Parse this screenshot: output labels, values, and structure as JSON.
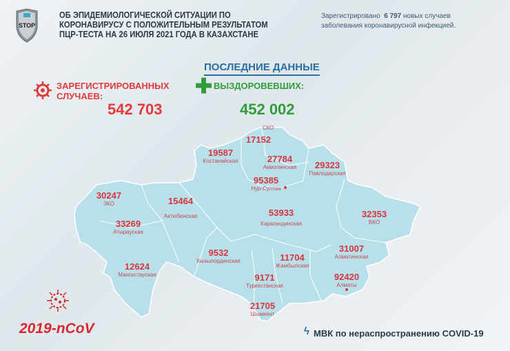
{
  "logo": {
    "text": "STOP",
    "colors": {
      "shield": "#8a9399",
      "accent": "#3aa6c9"
    }
  },
  "header": {
    "title_lines": [
      "ОБ ЭПИДЕМИОЛОГИЧЕСКОЙ СИТУАЦИИ ПО",
      "КОРОНАВИРУСУ С ПОЛОЖИТЕЛЬНЫМ РЕЗУЛЬТАТОМ",
      "ПЦР-ТЕСТА НА 26 ИЮЛЯ 2021 ГОДА В КАЗАХСТАНЕ"
    ],
    "note_prefix": "Зарегистрировано",
    "note_count": "6 797",
    "note_suffix": "новых случаев",
    "note_line2": "заболевания коронавирусной инфекцией."
  },
  "summary": {
    "heading": "ПОСЛЕДНИЕ ДАННЫЕ",
    "registered_label_1": "ЗАРЕГИСТРИРОВАННЫХ",
    "registered_label_2": "СЛУЧАЕВ:",
    "registered_value": "542 703",
    "recovered_label": "ВЫЗДОРОВЕВШИХ:",
    "recovered_value": "452 002",
    "colors": {
      "registered": "#e23a3a",
      "recovered": "#2f9e3a"
    }
  },
  "regions": [
    {
      "name": "СКО",
      "value": "17152"
    },
    {
      "name": "Костанайская",
      "value": "19587"
    },
    {
      "name": "Акмолинская",
      "value": "27784"
    },
    {
      "name": "Павлодарская",
      "value": "29323"
    },
    {
      "name": "Нур-Султан",
      "value": "95385"
    },
    {
      "name": "ЗКО",
      "value": "30247"
    },
    {
      "name": "Актюбинская",
      "value": "15464"
    },
    {
      "name": "Атырауская",
      "value": "33269"
    },
    {
      "name": "Карагандинская",
      "value": "53933"
    },
    {
      "name": "ВКО",
      "value": "32353"
    },
    {
      "name": "Кызылординская",
      "value": "9532"
    },
    {
      "name": "Мангистауская",
      "value": "12624"
    },
    {
      "name": "Алматинская",
      "value": "31007"
    },
    {
      "name": "Жамбылская",
      "value": "11704"
    },
    {
      "name": "Туркестанская",
      "value": "9171"
    },
    {
      "name": "Алматы",
      "value": "92420"
    },
    {
      "name": "Шымкент",
      "value": "21705"
    }
  ],
  "map_color": "#b8e0ea",
  "footer": {
    "virus_label": "2019-nCoV",
    "source": "МВК по нераспространению COVID-19"
  }
}
